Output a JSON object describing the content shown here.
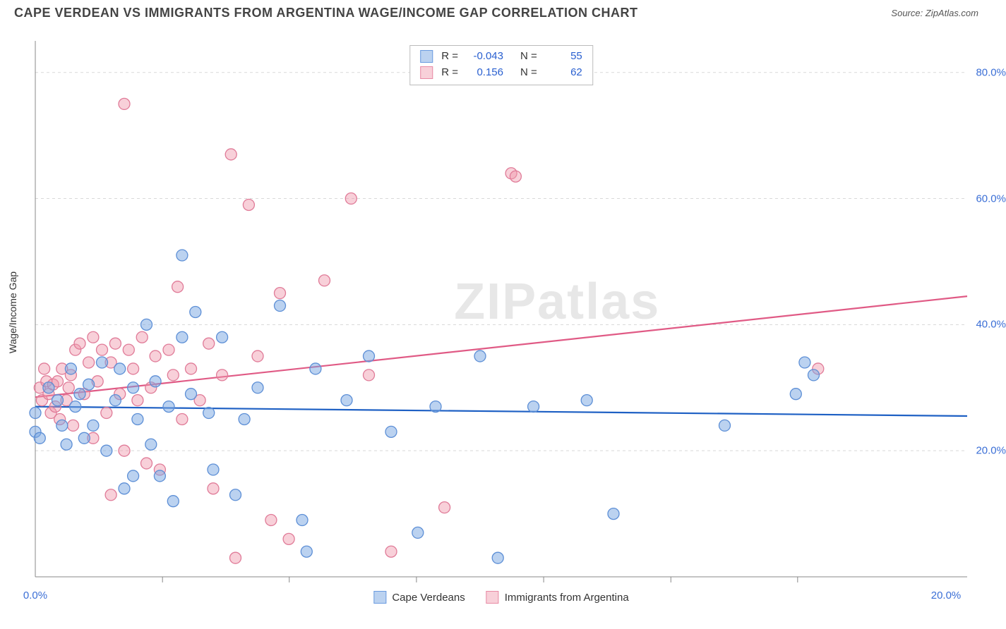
{
  "title": "CAPE VERDEAN VS IMMIGRANTS FROM ARGENTINA WAGE/INCOME GAP CORRELATION CHART",
  "source_label": "Source:",
  "source_name": "ZipAtlas.com",
  "watermark": "ZIPatlas",
  "chart": {
    "type": "scatter",
    "y_axis_label": "Wage/Income Gap",
    "xlim": [
      0,
      20
    ],
    "ylim": [
      0,
      85
    ],
    "x_ticks": [
      0,
      20
    ],
    "x_tick_labels": [
      "0.0%",
      "20.0%"
    ],
    "x_minor_ticks": [
      2.86,
      5.71,
      8.57,
      11.43,
      14.29,
      17.14
    ],
    "y_ticks": [
      20,
      40,
      60,
      80
    ],
    "y_tick_labels": [
      "20.0%",
      "40.0%",
      "60.0%",
      "80.0%"
    ],
    "background_color": "#ffffff",
    "grid_color": "#d8d8d8",
    "grid_dash": "4 4",
    "axis_color": "#888888",
    "marker_radius": 8,
    "marker_stroke_width": 1.3,
    "series": {
      "blue": {
        "label": "Cape Verdeans",
        "fill": "rgba(120,165,225,0.50)",
        "stroke": "#5d8fd6",
        "R": "-0.043",
        "N": "55",
        "trend": {
          "y_at_x0": 27.0,
          "y_at_xmax": 25.5,
          "color": "#1e60c4",
          "width": 2.2
        },
        "points": [
          [
            0.0,
            26
          ],
          [
            0.0,
            23
          ],
          [
            0.1,
            22
          ],
          [
            0.3,
            30
          ],
          [
            0.5,
            28
          ],
          [
            0.6,
            24
          ],
          [
            0.7,
            21
          ],
          [
            0.8,
            33
          ],
          [
            0.9,
            27
          ],
          [
            1.0,
            29
          ],
          [
            1.1,
            22
          ],
          [
            1.2,
            30.5
          ],
          [
            1.3,
            24
          ],
          [
            1.5,
            34
          ],
          [
            1.6,
            20
          ],
          [
            1.8,
            28
          ],
          [
            1.9,
            33
          ],
          [
            2.0,
            14
          ],
          [
            2.2,
            30
          ],
          [
            2.2,
            16
          ],
          [
            2.3,
            25
          ],
          [
            2.5,
            40
          ],
          [
            2.6,
            21
          ],
          [
            2.7,
            31
          ],
          [
            2.8,
            16
          ],
          [
            3.0,
            27
          ],
          [
            3.1,
            12
          ],
          [
            3.3,
            51
          ],
          [
            3.3,
            38
          ],
          [
            3.5,
            29
          ],
          [
            3.6,
            42
          ],
          [
            3.9,
            26
          ],
          [
            4.0,
            17
          ],
          [
            4.2,
            38
          ],
          [
            4.5,
            13
          ],
          [
            4.7,
            25
          ],
          [
            5.0,
            30
          ],
          [
            5.5,
            43
          ],
          [
            6.0,
            9
          ],
          [
            6.1,
            4
          ],
          [
            6.3,
            33
          ],
          [
            7.0,
            28
          ],
          [
            7.5,
            35
          ],
          [
            8.0,
            23
          ],
          [
            8.6,
            7
          ],
          [
            9.0,
            27
          ],
          [
            10.0,
            35
          ],
          [
            10.4,
            3
          ],
          [
            11.2,
            27
          ],
          [
            12.4,
            28
          ],
          [
            13.0,
            10
          ],
          [
            15.5,
            24
          ],
          [
            17.1,
            29
          ],
          [
            17.5,
            32
          ],
          [
            17.3,
            34
          ]
        ]
      },
      "pink": {
        "label": "Immigrants from Argentina",
        "fill": "rgba(240,150,170,0.45)",
        "stroke": "#e07b98",
        "R": "0.156",
        "N": "62",
        "trend": {
          "y_at_x0": 28.5,
          "y_at_xmax": 44.5,
          "color": "#e05a85",
          "width": 2.2
        },
        "points": [
          [
            0.1,
            30
          ],
          [
            0.15,
            28
          ],
          [
            0.2,
            33
          ],
          [
            0.25,
            31
          ],
          [
            0.3,
            29
          ],
          [
            0.35,
            26
          ],
          [
            0.4,
            30.5
          ],
          [
            0.45,
            27
          ],
          [
            0.5,
            31
          ],
          [
            0.55,
            25
          ],
          [
            0.6,
            33
          ],
          [
            0.7,
            28
          ],
          [
            0.75,
            30
          ],
          [
            0.8,
            32
          ],
          [
            0.85,
            24
          ],
          [
            0.9,
            36
          ],
          [
            1.0,
            37
          ],
          [
            1.1,
            29
          ],
          [
            1.2,
            34
          ],
          [
            1.3,
            22
          ],
          [
            1.3,
            38
          ],
          [
            1.4,
            31
          ],
          [
            1.5,
            36
          ],
          [
            1.6,
            26
          ],
          [
            1.7,
            34
          ],
          [
            1.7,
            13
          ],
          [
            1.8,
            37
          ],
          [
            1.9,
            29
          ],
          [
            2.0,
            75
          ],
          [
            2.0,
            20
          ],
          [
            2.1,
            36
          ],
          [
            2.2,
            33
          ],
          [
            2.3,
            28
          ],
          [
            2.4,
            38
          ],
          [
            2.5,
            18
          ],
          [
            2.6,
            30
          ],
          [
            2.7,
            35
          ],
          [
            2.8,
            17
          ],
          [
            3.0,
            36
          ],
          [
            3.1,
            32
          ],
          [
            3.2,
            46
          ],
          [
            3.3,
            25
          ],
          [
            3.5,
            33
          ],
          [
            3.7,
            28
          ],
          [
            3.9,
            37
          ],
          [
            4.0,
            14
          ],
          [
            4.2,
            32
          ],
          [
            4.4,
            67
          ],
          [
            4.5,
            3
          ],
          [
            4.8,
            59
          ],
          [
            5.0,
            35
          ],
          [
            5.3,
            9
          ],
          [
            5.5,
            45
          ],
          [
            5.7,
            6
          ],
          [
            6.5,
            47
          ],
          [
            7.1,
            60
          ],
          [
            7.5,
            32
          ],
          [
            8.0,
            4
          ],
          [
            9.2,
            11
          ],
          [
            10.7,
            64
          ],
          [
            10.8,
            63.5
          ],
          [
            17.6,
            33
          ]
        ]
      }
    }
  },
  "stats_legend": {
    "r_label": "R =",
    "n_label": "N ="
  }
}
